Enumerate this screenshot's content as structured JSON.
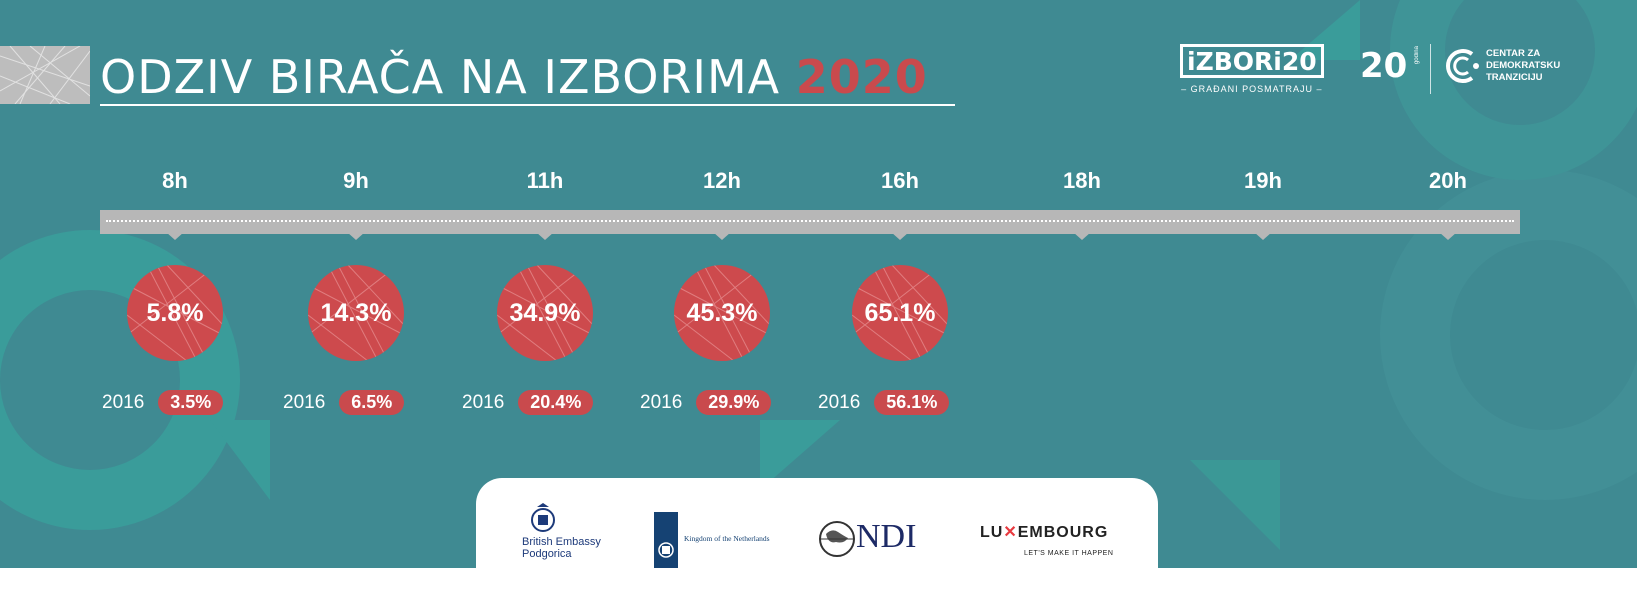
{
  "title": {
    "main": "ODZIV BIRAČA NA IZBORIMA",
    "year": "2020"
  },
  "header_logos": {
    "izbori": {
      "wordmark": "iZBORi20",
      "tagline": "– GRAĐANI POSMATRAJU –"
    },
    "anniversary": {
      "mark": "20",
      "side_text": "godina"
    },
    "cdt": {
      "line1": "CENTAR ZA",
      "line2": "DEMOKRATSKU",
      "line3": "TRANZICIJU"
    }
  },
  "timeline": {
    "hours": [
      "8h",
      "9h",
      "11h",
      "12h",
      "16h",
      "18h",
      "19h",
      "20h"
    ],
    "turnout_2020": [
      {
        "hour": "8h",
        "value": "5.8%",
        "fraction": 0.058
      },
      {
        "hour": "9h",
        "value": "14.3%",
        "fraction": 0.143
      },
      {
        "hour": "11h",
        "value": "34.9%",
        "fraction": 0.349
      },
      {
        "hour": "12h",
        "value": "45.3%",
        "fraction": 0.453
      },
      {
        "hour": "16h",
        "value": "65.1%",
        "fraction": 0.651
      }
    ],
    "comparison": [
      {
        "year": "2016",
        "value": "3.5%"
      },
      {
        "year": "2016",
        "value": "6.5%"
      },
      {
        "year": "2016",
        "value": "20.4%"
      },
      {
        "year": "2016",
        "value": "29.9%"
      },
      {
        "year": "2016",
        "value": "56.1%"
      }
    ]
  },
  "sponsors": {
    "british": {
      "line1": "British Embassy",
      "line2": "Podgorica"
    },
    "netherlands": {
      "label": "Kingdom of the Netherlands"
    },
    "ndi": {
      "label": "NDI"
    },
    "luxembourg": {
      "label_a": "LU",
      "label_b": "EMBOURG",
      "tagline": "LET'S MAKE IT HAPPEN"
    }
  },
  "colors": {
    "background": "#3f8a92",
    "accent_red": "#cd4a4d",
    "track": "#b7b7b7",
    "deco_teal": "#3a9c9a"
  }
}
